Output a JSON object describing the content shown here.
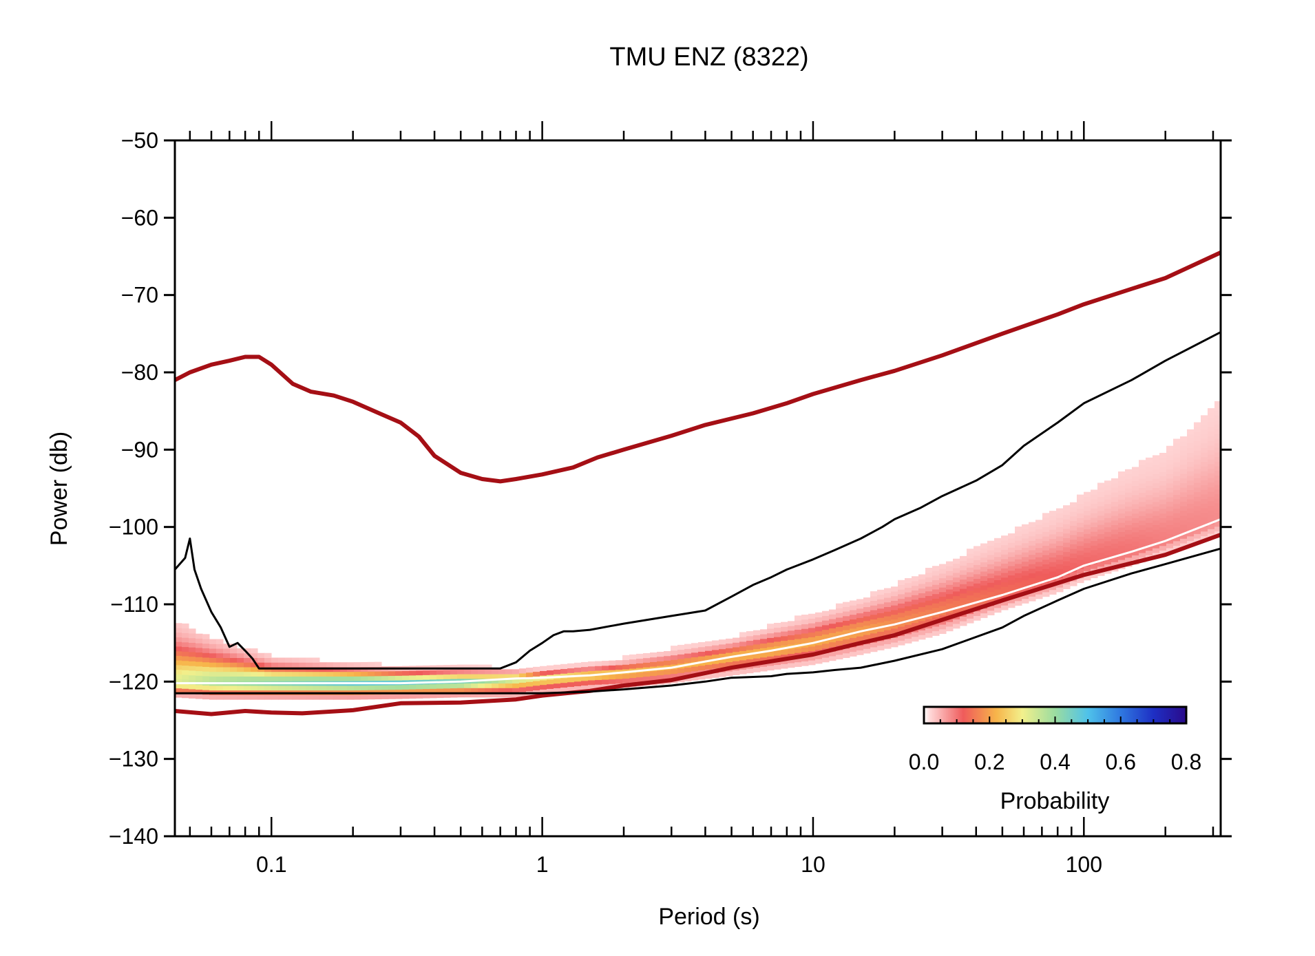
{
  "chart_data": {
    "type": "heatmap",
    "title": "TMU ENZ (8322)",
    "xlabel": "Period (s)",
    "ylabel": "Power (db)",
    "x_scale": "log",
    "xlim": [
      0.044,
      320
    ],
    "ylim": [
      -140,
      -50
    ],
    "x_ticks": [
      {
        "value": 0.1,
        "label": "0.1"
      },
      {
        "value": 1,
        "label": "1"
      },
      {
        "value": 10,
        "label": "10"
      },
      {
        "value": 100,
        "label": "100"
      }
    ],
    "y_ticks": [
      {
        "value": -50,
        "label": "−50"
      },
      {
        "value": -60,
        "label": "−60"
      },
      {
        "value": -70,
        "label": "−70"
      },
      {
        "value": -80,
        "label": "−80"
      },
      {
        "value": -90,
        "label": "−90"
      },
      {
        "value": -100,
        "label": "−100"
      },
      {
        "value": -110,
        "label": "−110"
      },
      {
        "value": -120,
        "label": "−120"
      },
      {
        "value": -130,
        "label": "−130"
      },
      {
        "value": -140,
        "label": "−140"
      }
    ],
    "grid": false,
    "series": [
      {
        "role": "high-noise-model",
        "color": "#a50f15",
        "x": [
          0.044,
          0.05,
          0.06,
          0.07,
          0.08,
          0.09,
          0.1,
          0.12,
          0.14,
          0.17,
          0.2,
          0.25,
          0.3,
          0.35,
          0.4,
          0.5,
          0.6,
          0.7,
          0.8,
          1,
          1.3,
          1.6,
          2,
          3,
          4,
          6,
          8,
          10,
          15,
          20,
          30,
          50,
          80,
          100,
          150,
          200,
          320
        ],
        "y": [
          -81,
          -80,
          -79,
          -78.5,
          -78,
          -78,
          -79,
          -81.5,
          -82.5,
          -83,
          -83.8,
          -85.3,
          -86.5,
          -88.3,
          -90.8,
          -93,
          -93.8,
          -94.1,
          -93.8,
          -93.2,
          -92.3,
          -91,
          -90,
          -88.2,
          -86.8,
          -85.3,
          -84,
          -82.8,
          -81,
          -79.8,
          -77.8,
          -75,
          -72.5,
          -71.2,
          -69.2,
          -67.8,
          -64.5
        ]
      },
      {
        "role": "low-noise-model",
        "color": "#a50f15",
        "x": [
          0.044,
          0.06,
          0.08,
          0.1,
          0.13,
          0.2,
          0.3,
          0.5,
          0.8,
          1,
          1.5,
          2,
          3,
          5,
          10,
          15,
          20,
          30,
          50,
          100,
          200,
          320
        ],
        "y": [
          -123.8,
          -124.2,
          -123.8,
          -124,
          -124.1,
          -123.7,
          -122.8,
          -122.7,
          -122.3,
          -121.8,
          -121.2,
          -120.5,
          -119.8,
          -118.2,
          -116.5,
          -115,
          -114,
          -112,
          -109.5,
          -106.2,
          -103.6,
          -101
        ]
      },
      {
        "role": "upper-envelope",
        "color": "#000000",
        "x": [
          0.044,
          0.048,
          0.05,
          0.052,
          0.055,
          0.06,
          0.065,
          0.07,
          0.075,
          0.08,
          0.085,
          0.09,
          0.1,
          0.12,
          0.2,
          0.35,
          0.5,
          0.7,
          0.8,
          0.9,
          1,
          1.1,
          1.2,
          1.3,
          1.5,
          2,
          3,
          4,
          5,
          6,
          7,
          8,
          10,
          12,
          15,
          18,
          20,
          25,
          30,
          40,
          50,
          60,
          80,
          100,
          150,
          200,
          320
        ],
        "y": [
          -105.5,
          -104,
          -101.5,
          -105.5,
          -108,
          -111,
          -113,
          -115.5,
          -115,
          -116,
          -117,
          -118.3,
          -118.3,
          -118.3,
          -118.3,
          -118.3,
          -118.3,
          -118.3,
          -117.5,
          -116,
          -115,
          -114,
          -113.5,
          -113.5,
          -113.3,
          -112.5,
          -111.5,
          -110.8,
          -109,
          -107.5,
          -106.5,
          -105.5,
          -104.2,
          -103,
          -101.5,
          -100,
          -99,
          -97.5,
          -96,
          -94,
          -92,
          -89.5,
          -86.5,
          -84,
          -81,
          -78.5,
          -74.8
        ]
      },
      {
        "role": "lower-envelope",
        "color": "#000000",
        "x": [
          0.044,
          0.1,
          0.2,
          0.5,
          1,
          1.5,
          2,
          3,
          4,
          5,
          7,
          8,
          10,
          12,
          15,
          20,
          30,
          50,
          60,
          80,
          100,
          150,
          200,
          320
        ],
        "y": [
          -121.5,
          -121.5,
          -121.5,
          -121.5,
          -121.5,
          -121.3,
          -121,
          -120.5,
          -120,
          -119.5,
          -119.3,
          -119,
          -118.8,
          -118.5,
          -118.2,
          -117.3,
          -115.8,
          -113,
          -111.5,
          -109.5,
          -108,
          -106,
          -104.8,
          -102.8
        ]
      },
      {
        "role": "mode",
        "color": "#ffffff",
        "x": [
          0.044,
          0.1,
          0.2,
          0.3,
          0.5,
          0.8,
          1,
          1.5,
          2,
          3,
          4,
          5,
          7,
          10,
          15,
          20,
          30,
          50,
          80,
          100,
          150,
          200,
          320
        ],
        "y": [
          -120.2,
          -120.2,
          -120.2,
          -120.2,
          -120,
          -119.6,
          -119.5,
          -119.2,
          -118.8,
          -118.2,
          -117.4,
          -116.8,
          -116,
          -115,
          -113.5,
          -112.6,
          -111,
          -108.8,
          -106.5,
          -105,
          -103.2,
          -101.8,
          -99
        ]
      }
    ],
    "density": {
      "x": [
        0.044,
        0.06,
        0.1,
        0.2,
        0.3,
        0.5,
        0.8,
        1,
        1.5,
        2,
        3,
        5,
        7,
        10,
        15,
        20,
        30,
        50,
        80,
        100,
        150,
        200,
        320
      ],
      "upper": [
        -112.5,
        -114.5,
        -117,
        -117.8,
        -118.2,
        -118.3,
        -118.5,
        -118.4,
        -117.8,
        -117.2,
        -116,
        -114.5,
        -113,
        -111.5,
        -109.5,
        -107.8,
        -105,
        -101.5,
        -98,
        -96,
        -92.5,
        -90.5,
        -84
      ],
      "lower": [
        -122,
        -122.3,
        -122.3,
        -122.3,
        -122.2,
        -122,
        -122,
        -121.6,
        -121,
        -120.8,
        -120.2,
        -119.2,
        -118.5,
        -117.8,
        -116.5,
        -115.5,
        -113.8,
        -110.8,
        -108.5,
        -107,
        -105,
        -103.5,
        -101
      ],
      "mode": [
        -120.2,
        -120.2,
        -120.2,
        -120.2,
        -120.2,
        -120,
        -119.6,
        -119.5,
        -119.2,
        -118.8,
        -118.2,
        -116.8,
        -116,
        -115,
        -113.5,
        -112.6,
        -111,
        -108.8,
        -106.5,
        -105,
        -103.2,
        -101.8,
        -99
      ],
      "peak": [
        0.3,
        0.35,
        0.4,
        0.45,
        0.45,
        0.42,
        0.32,
        0.28,
        0.24,
        0.22,
        0.2,
        0.2,
        0.2,
        0.19,
        0.18,
        0.16,
        0.14,
        0.12,
        0.1,
        0.09,
        0.08,
        0.07,
        0.06
      ]
    },
    "colorbar": {
      "label": "Probability",
      "range": [
        0,
        0.8
      ],
      "ticks": [
        {
          "value": 0,
          "label": "0.0"
        },
        {
          "value": 0.2,
          "label": "0.2"
        },
        {
          "value": 0.4,
          "label": "0.4"
        },
        {
          "value": 0.6,
          "label": "0.6"
        },
        {
          "value": 0.8,
          "label": "0.8"
        }
      ],
      "stops": [
        {
          "value": 0,
          "color": "#ffffff"
        },
        {
          "value": 0.02,
          "color": "#ffd6d6"
        },
        {
          "value": 0.12,
          "color": "#ef5b5b"
        },
        {
          "value": 0.22,
          "color": "#f7b44a"
        },
        {
          "value": 0.3,
          "color": "#f2f08c"
        },
        {
          "value": 0.4,
          "color": "#9bdca0"
        },
        {
          "value": 0.5,
          "color": "#4fc2ea"
        },
        {
          "value": 0.6,
          "color": "#2f78e0"
        },
        {
          "value": 0.7,
          "color": "#1e2fc4"
        },
        {
          "value": 0.8,
          "color": "#2a0a8a"
        }
      ]
    }
  }
}
